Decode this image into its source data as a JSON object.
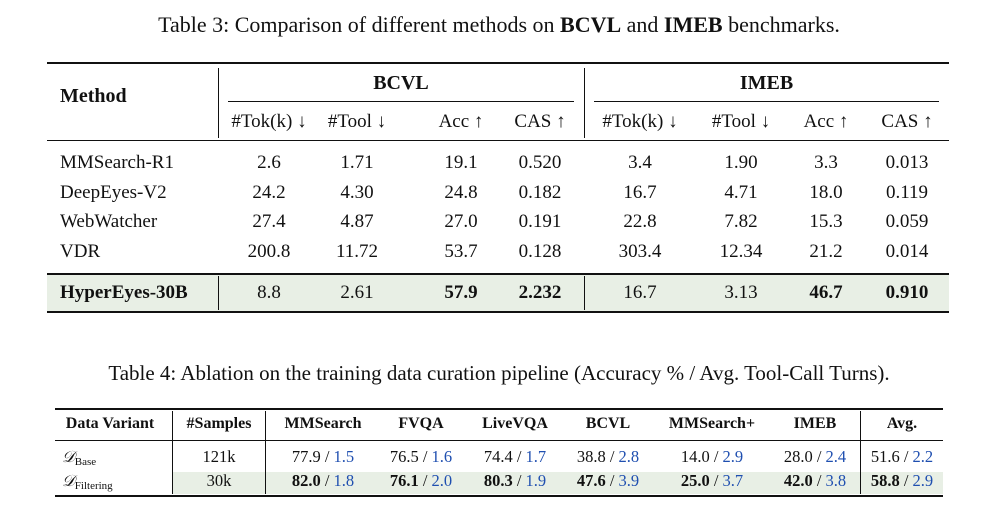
{
  "table3": {
    "caption_prefix": "Table 3: Comparison of different methods on ",
    "caption_b1": "BCVL",
    "caption_mid": " and ",
    "caption_b2": "IMEB",
    "caption_suffix": " benchmarks.",
    "method_header": "Method",
    "groups": [
      "BCVL",
      "IMEB"
    ],
    "subheaders": [
      "#Tok(k) ↓",
      "#Tool ↓",
      "Acc ↑",
      "CAS ↑",
      "#Tok(k) ↓",
      "#Tool ↓",
      "Acc ↑",
      "CAS ↑"
    ],
    "rows": [
      {
        "method": "MMSearch-R1",
        "values": [
          "2.6",
          "1.71",
          "19.1",
          "0.520",
          "3.4",
          "1.90",
          "3.3",
          "0.013"
        ]
      },
      {
        "method": "DeepEyes-V2",
        "values": [
          "24.2",
          "4.30",
          "24.8",
          "0.182",
          "16.7",
          "4.71",
          "18.0",
          "0.119"
        ]
      },
      {
        "method": "WebWatcher",
        "values": [
          "27.4",
          "4.87",
          "27.0",
          "0.191",
          "22.8",
          "7.82",
          "15.3",
          "0.059"
        ]
      },
      {
        "method": "VDR",
        "values": [
          "200.8",
          "11.72",
          "53.7",
          "0.128",
          "303.4",
          "12.34",
          "21.2",
          "0.014"
        ]
      }
    ],
    "highlight_row": {
      "method": "HyperEyes-30B",
      "values": [
        "8.8",
        "2.61",
        "57.9",
        "2.232",
        "16.7",
        "3.13",
        "46.7",
        "0.910"
      ],
      "bold_idx": [
        2,
        3,
        6,
        7
      ]
    },
    "highlight_color": "#e8efe5"
  },
  "table4": {
    "caption": "Table 4: Ablation on the training data curation pipeline (Accuracy % / Avg. Tool-Call Turns).",
    "headers": [
      "Data Variant",
      "#Samples",
      "MMSearch",
      "FVQA",
      "LiveVQA",
      "BCVL",
      "MMSearch+",
      "IMEB",
      "Avg."
    ],
    "rows": [
      {
        "variant_sub": "Base",
        "samples": "121k",
        "cells": [
          [
            "77.9",
            "1.5"
          ],
          [
            "76.5",
            "1.6"
          ],
          [
            "74.4",
            "1.7"
          ],
          [
            "38.8",
            "2.8"
          ],
          [
            "14.0",
            "2.9"
          ],
          [
            "28.0",
            "2.4"
          ],
          [
            "51.6",
            "2.2"
          ]
        ],
        "bold": false
      },
      {
        "variant_sub": "Filtering",
        "samples": "30k",
        "cells": [
          [
            "82.0",
            "1.8"
          ],
          [
            "76.1",
            "2.0"
          ],
          [
            "80.3",
            "1.9"
          ],
          [
            "47.6",
            "3.9"
          ],
          [
            "25.0",
            "3.7"
          ],
          [
            "42.0",
            "3.8"
          ],
          [
            "58.8",
            "2.9"
          ]
        ],
        "bold": true
      }
    ],
    "variant_symbol": "𝒟",
    "separator": " / ",
    "secondary_color": "#1f4fb0",
    "highlight_color": "#e8efe5"
  }
}
